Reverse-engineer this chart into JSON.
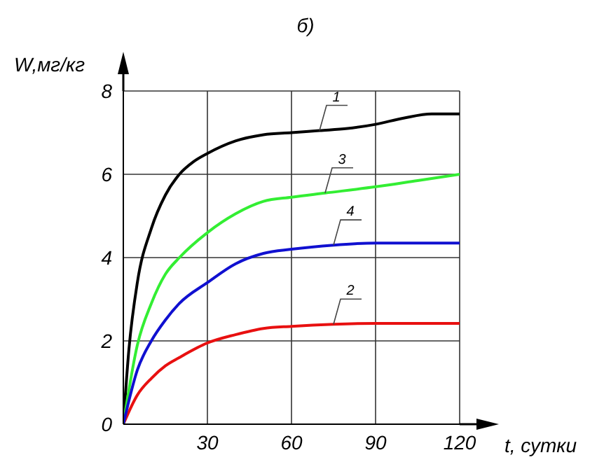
{
  "chart_data": {
    "type": "line",
    "title": "б)",
    "xlabel": "t, сутки",
    "ylabel": "W,мг/кг",
    "xlim": [
      0,
      120
    ],
    "ylim": [
      0,
      8
    ],
    "xticks": [
      {
        "value": 0,
        "label": null
      },
      30,
      60,
      90,
      120
    ],
    "yticks": [
      0,
      2,
      4,
      6,
      8
    ],
    "grid": true,
    "legend": false,
    "marker": "none",
    "line_style": "solid",
    "series": [
      {
        "name": "1",
        "color": "#000000",
        "x": [
          0,
          2,
          5,
          10,
          15,
          20,
          25,
          30,
          40,
          50,
          60,
          70,
          80,
          90,
          100,
          110,
          120
        ],
        "values": [
          0,
          1.8,
          3.4,
          4.7,
          5.5,
          6.0,
          6.3,
          6.5,
          6.8,
          6.95,
          7.0,
          7.05,
          7.1,
          7.2,
          7.35,
          7.45,
          7.45
        ]
      },
      {
        "name": "2",
        "color": "#e81010",
        "x": [
          0,
          5,
          10,
          15,
          20,
          30,
          40,
          50,
          60,
          75,
          90,
          120
        ],
        "values": [
          0,
          0.7,
          1.1,
          1.4,
          1.6,
          1.95,
          2.15,
          2.3,
          2.35,
          2.4,
          2.42,
          2.42
        ]
      },
      {
        "name": "3",
        "color": "#33ee33",
        "x": [
          0,
          5,
          10,
          15,
          20,
          30,
          40,
          50,
          60,
          72,
          90,
          105,
          120
        ],
        "values": [
          0,
          1.9,
          2.9,
          3.6,
          4.0,
          4.6,
          5.05,
          5.35,
          5.45,
          5.55,
          5.7,
          5.85,
          6.0
        ]
      },
      {
        "name": "4",
        "color": "#1010d0",
        "x": [
          0,
          5,
          10,
          15,
          20,
          30,
          40,
          50,
          60,
          75,
          90,
          120
        ],
        "values": [
          0,
          1.3,
          2.0,
          2.5,
          2.9,
          3.4,
          3.85,
          4.1,
          4.2,
          4.3,
          4.35,
          4.35
        ]
      }
    ]
  }
}
